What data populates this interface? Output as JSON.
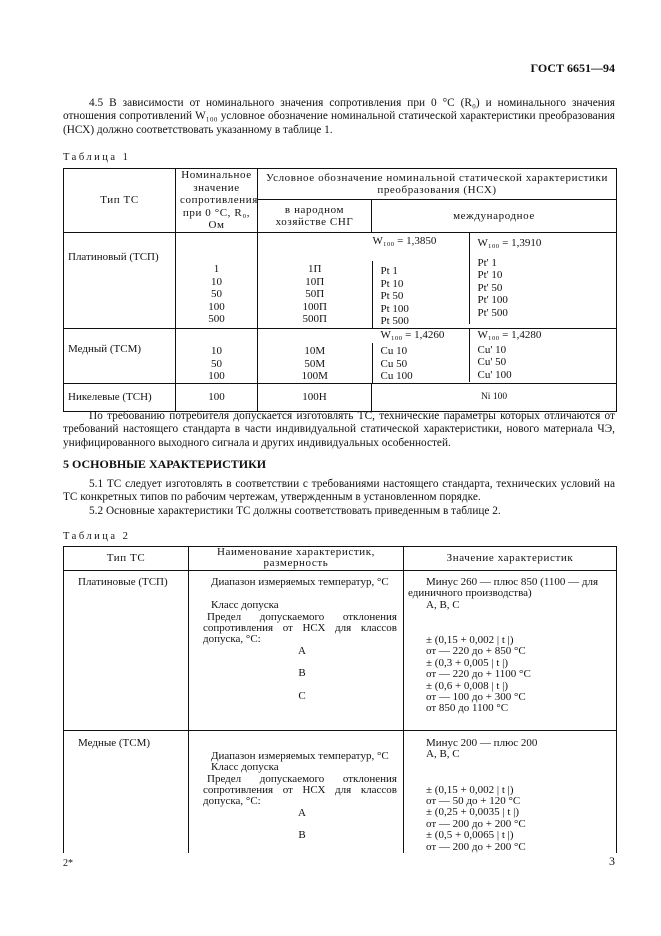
{
  "header": "ГОСТ 6651—94",
  "para_4_5": "4.5 В зависимости от номинального значения сопротивления при 0 °С (R₀) и номинального значения отношения сопротивлений W₁₀₀ условное обозначение номинальной статической характеристики преобразования (НСХ) должно соответствовать указанному в таблице 1.",
  "table1": {
    "caption": "Таблица 1",
    "h_type": "Тип ТС",
    "h_nominal": "Номинальное значение сопротивления при 0 °С, R₀, Ом",
    "h_designation": "Условное обозначение номинальной статической характеристики преобразования (НСХ)",
    "h_cis": "в народном хозяйстве СНГ",
    "h_intl": "международное",
    "groups": [
      {
        "type": "Платиновый (ТСП)",
        "w1": "W₁₀₀ = 1,3850",
        "w2": "W₁₀₀ = 1,3910",
        "nominal": "1\n10\n50\n100\n500",
        "cis": "1П\n10П\n50П\n100П\n500П",
        "intl1": "Pt 1\nPt 10\nPt 50\nPt 100\nPt 500",
        "intl2": "Pt' 1\nPt' 10\nPt' 50\nPt' 100\nPt' 500"
      },
      {
        "type": "Медный (ТСМ)",
        "w1": "W₁₀₀ = 1,4260",
        "w2": "W₁₀₀ = 1,4280",
        "nominal": "10\n50\n100",
        "cis": "10М\n50М\n100М",
        "intl1": "Cu 10\nCu 50\nCu 100",
        "intl2": "Cu' 10\nCu' 50\nCu' 100"
      },
      {
        "type": "Никелевые (ТСН)",
        "nominal": "100",
        "cis": "100Н",
        "intl": "Ni 100"
      }
    ]
  },
  "para_consumer": "По требованию потребителя допускается изготовлять ТС, технические параметры которых отличаются от требований настоящего стандарта в части индивидуальной статической характеристики, нового материала ЧЭ, унифицированного выходного сигнала и других индивидуальных особенностей.",
  "section5_title": "5 ОСНОВНЫЕ ХАРАКТЕРИСТИКИ",
  "para_5_1": "5.1 ТС следует изготовлять в соответствии с требованиями настоящего стандарта, технических условий на ТС конкретных типов по рабочим чертежам, утвержденным в установленном порядке.",
  "para_5_2": "5.2 Основные характеристики ТС должны соответствовать приведенным в таблице 2.",
  "table2": {
    "caption": "Таблица 2",
    "h_type": "Тип ТС",
    "h_name": "Наименование характеристик, размерность",
    "h_value": "Значение характеристик",
    "rows": [
      {
        "type": "Платиновые (ТСП)",
        "range_label": "Диапазон измеряемых температур, °С",
        "class_label": "Класс допуска",
        "limit_label": "Предел допускаемого отклонения сопротивления от НСХ для классов допуска, °С:",
        "classes": [
          "A",
          "B",
          "C"
        ],
        "range": "Минус 260 — плюс 850 (1100 — для единичного производства)",
        "class_value": "A, B, C",
        "limits": [
          "± (0,15 + 0,002 | t |)",
          "от — 220 до + 850 °С",
          "± (0,3 + 0,005 | t |)",
          "от — 220 до + 1100 °С",
          "± (0,6 + 0,008 | t |)",
          "от — 100 до + 300 °С",
          "от 850 до 1100 °С"
        ]
      },
      {
        "type": "Медные (ТСМ)",
        "range_label": "Диапазон измеряемых температур, °С",
        "class_label": "Класс допуска",
        "limit_label": "Предел допускаемого отклонения сопротивления от НСХ для классов допуска, °С:",
        "classes": [
          "A",
          "B"
        ],
        "range": "Минус 200 — плюс 200",
        "class_value": "A, B, C",
        "limits": [
          "± (0,15 + 0,002 | t |)",
          "от — 50 до + 120 °С",
          "± (0,25 + 0,0035 | t |)",
          "от — 200 до + 200 °С",
          "± (0,5 + 0,0065 | t |)",
          "от — 200 до + 200 °С"
        ]
      }
    ]
  },
  "footer_left": "2*",
  "page_number": "3"
}
